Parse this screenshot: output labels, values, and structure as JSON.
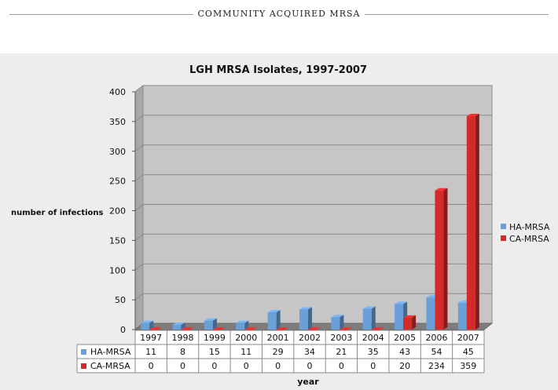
{
  "page": {
    "header_title": "COMMUNITY ACQUIRED MRSA"
  },
  "chart_data": {
    "type": "bar",
    "title": "LGH MRSA Isolates, 1997-2007",
    "xlabel": "year",
    "ylabel": "number of infections",
    "ylim": [
      0,
      400
    ],
    "yticks": [
      0,
      50,
      100,
      150,
      200,
      250,
      300,
      350,
      400
    ],
    "grid": true,
    "legend_position": "right",
    "categories": [
      "1997",
      "1998",
      "1999",
      "2000",
      "2001",
      "2002",
      "2003",
      "2004",
      "2005",
      "2006",
      "2007"
    ],
    "series": [
      {
        "name": "HA-MRSA",
        "color": "#6a9fd8",
        "values": [
          11,
          8,
          15,
          11,
          29,
          34,
          21,
          35,
          43,
          54,
          45
        ]
      },
      {
        "name": "CA-MRSA",
        "color": "#d42a2a",
        "values": [
          0,
          0,
          0,
          0,
          0,
          0,
          0,
          0,
          20,
          234,
          359
        ]
      }
    ],
    "data_table": true
  }
}
